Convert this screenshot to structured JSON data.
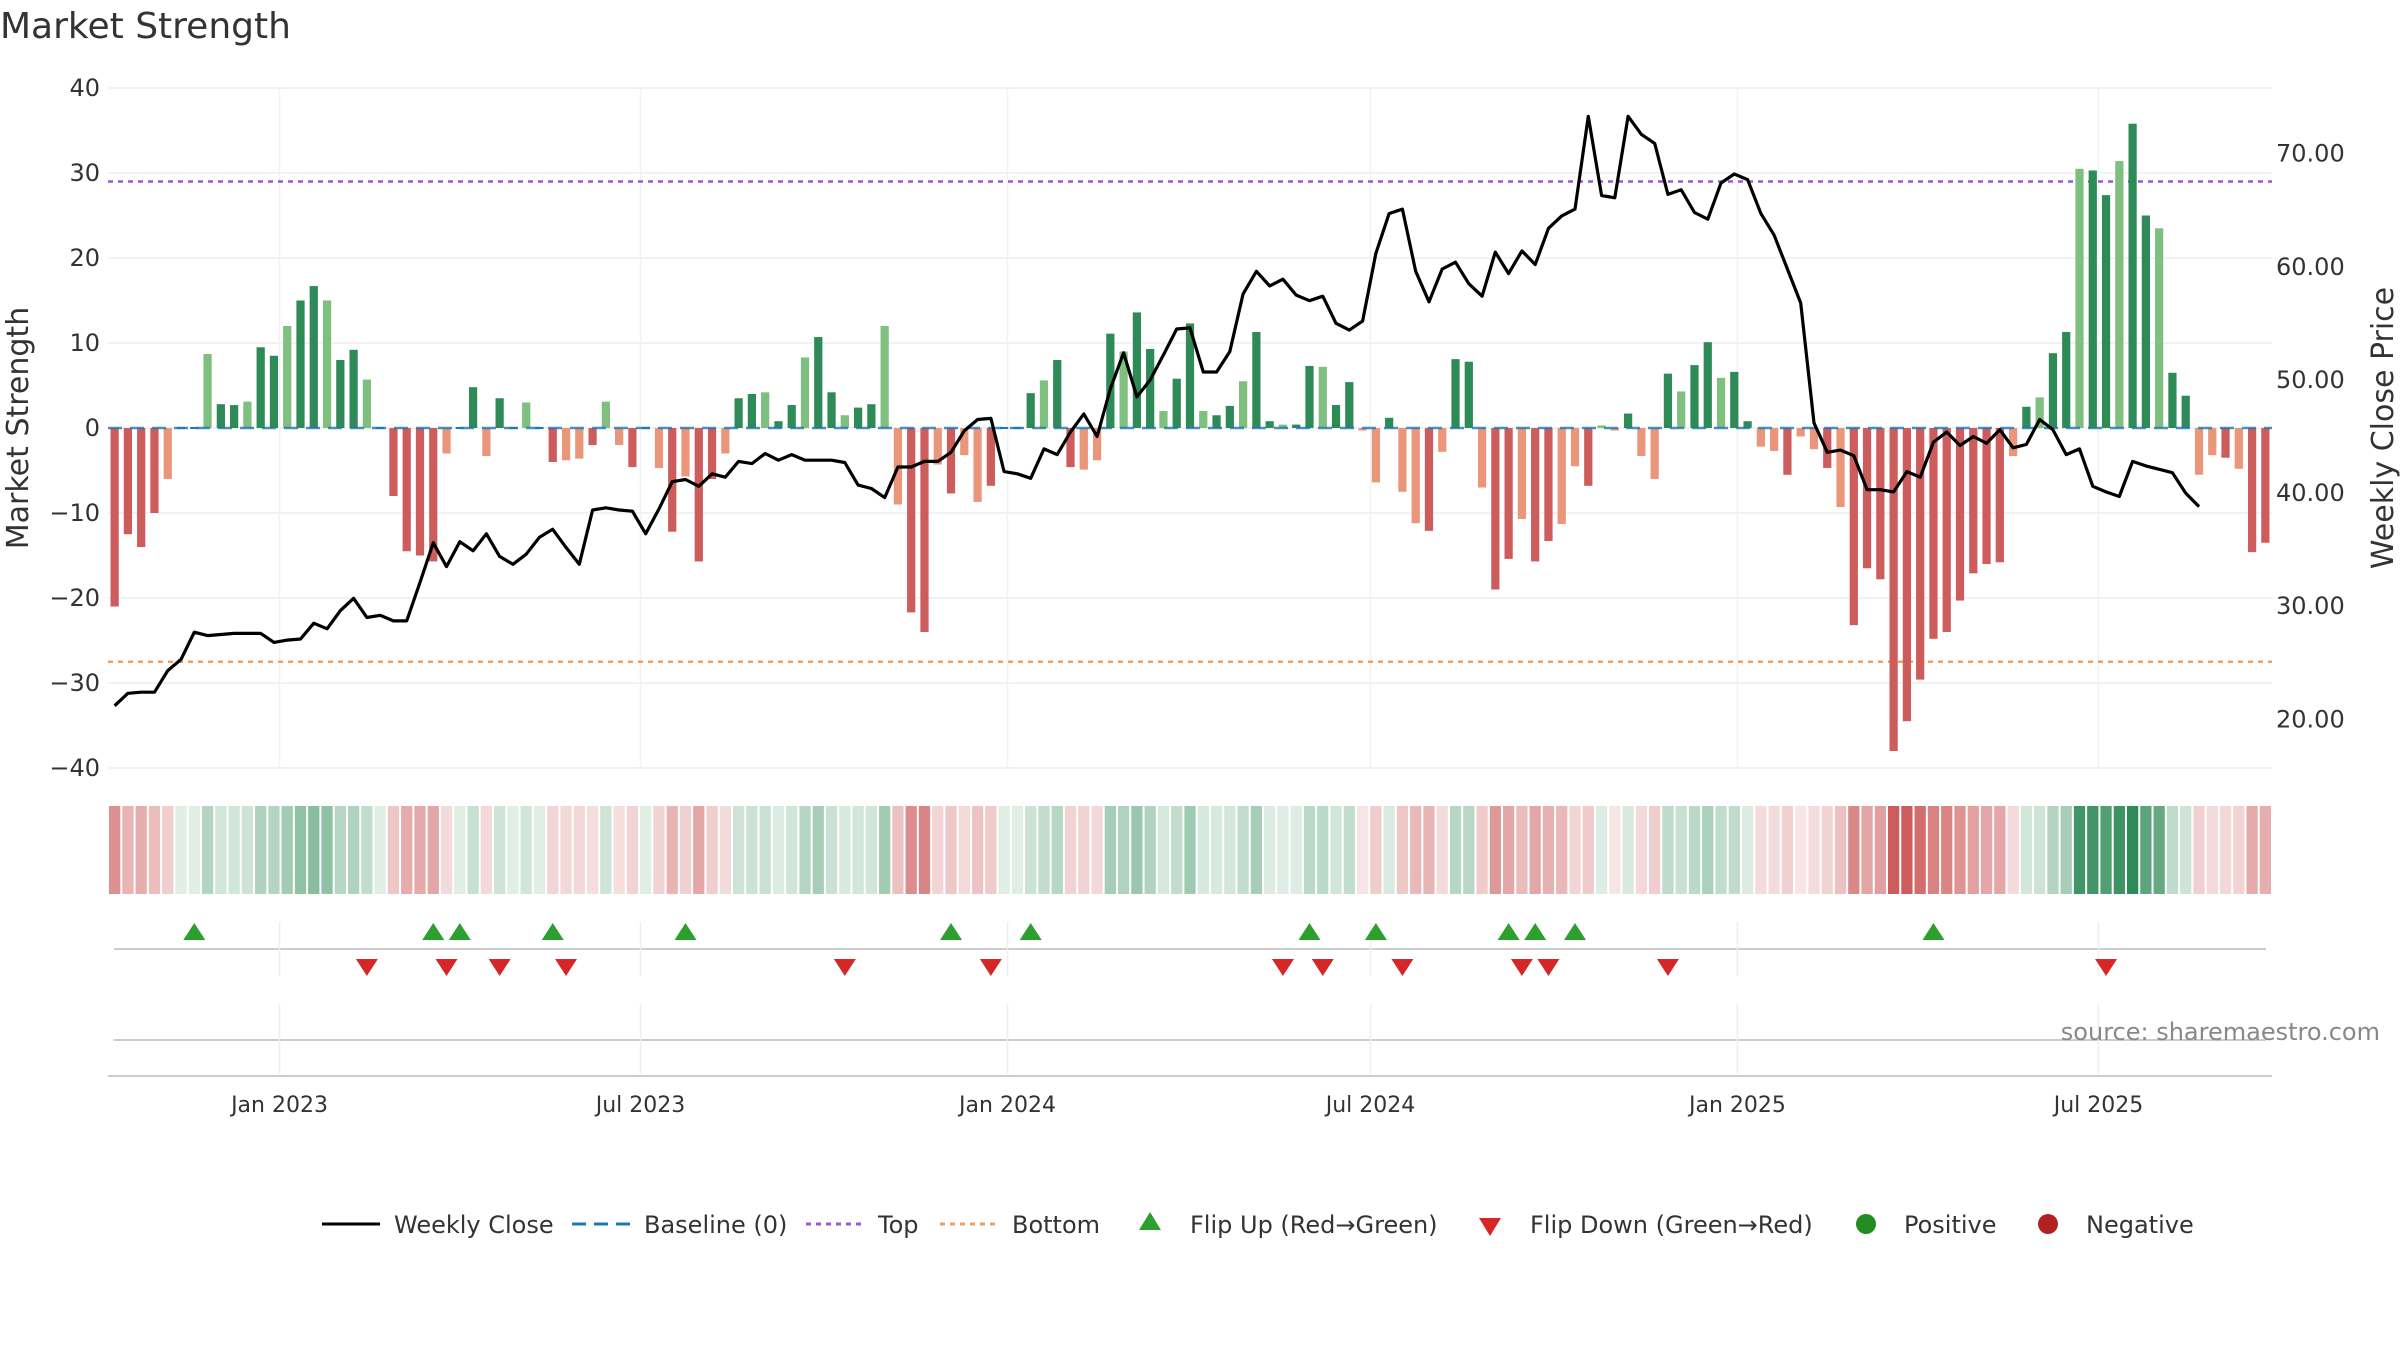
{
  "chart_data": {
    "type": "bar",
    "title": "Market Strength",
    "ylabel_left": "Market Strength",
    "ylabel_right": "Weekly Close Price",
    "ylim_left": [
      -40,
      40
    ],
    "ylim_right": [
      15.7,
      75.8
    ],
    "yticks_left": [
      "40",
      "30",
      "20",
      "10",
      "0",
      "−10",
      "−20",
      "−30",
      "−40"
    ],
    "yticks_right": [
      "70.00",
      "60.00",
      "50.00",
      "40.00",
      "30.00",
      "20.00"
    ],
    "xticks": [
      "Jan 2023",
      "Jul 2023",
      "Jan 2024",
      "Jul 2024",
      "Jan 2025",
      "Jul 2025"
    ],
    "x_range": [
      "2022-10-07",
      "2025-09-26"
    ],
    "top_level": 29,
    "bottom_level": -27.5,
    "grid": true,
    "source": "source: sharemaestro.com",
    "legend": [
      "Weekly Close",
      "Baseline (0)",
      "Top",
      "Bottom",
      "Flip Up (Red→Green)",
      "Flip Down (Green→Red)",
      "Positive",
      "Negative"
    ],
    "colors": {
      "pos_strong": "#2e8b57",
      "pos_light": "#7fbf7f",
      "neg_strong": "#cd5c5c",
      "neg_light": "#e9967a",
      "close_line": "#000000",
      "baseline": "#1f77b4",
      "top": "#9b59d0",
      "bottom": "#f0a060",
      "flip_up": "#2ca02c",
      "flip_down": "#d62728",
      "positive_dot": "#228b22",
      "negative_dot": "#b22222"
    },
    "strength": [
      -21,
      -12.5,
      -14,
      -10,
      -6,
      0,
      0,
      8.7,
      2.8,
      2.7,
      3.1,
      9.5,
      8.5,
      12,
      15,
      16.7,
      15,
      8,
      9.2,
      5.7,
      0,
      -8,
      -14.5,
      -15,
      -15.7,
      -3,
      0,
      4.8,
      -3.3,
      3.5,
      0,
      3,
      0,
      -4,
      -3.8,
      -3.6,
      -2,
      3.1,
      -2,
      -4.6,
      0,
      -4.7,
      -12.2,
      -5.7,
      -15.7,
      -6,
      -3,
      3.5,
      4,
      4.2,
      0.8,
      2.7,
      8.3,
      10.7,
      4.2,
      1.5,
      2.4,
      2.8,
      12,
      -9,
      -21.7,
      -24,
      -4.3,
      -7.7,
      -3.2,
      -8.7,
      -6.8,
      0,
      0,
      4.1,
      5.6,
      8,
      -4.6,
      -4.9,
      -3.8,
      11.1,
      9,
      13.6,
      9.3,
      2,
      5.8,
      12.3,
      2,
      1.5,
      2.6,
      5.5,
      11.3,
      0.8,
      0.4,
      0.4,
      7.3,
      7.2,
      2.7,
      5.4,
      -0.3,
      -6.4,
      1.2,
      -7.5,
      -11.2,
      -12.1,
      -2.8,
      8.1,
      7.8,
      -7,
      -19,
      -15.4,
      -10.7,
      -15.7,
      -13.3,
      -11.3,
      -4.5,
      -6.8,
      0.3,
      -0.3,
      1.7,
      -3.3,
      -6,
      6.4,
      4.3,
      7.4,
      10.1,
      5.9,
      6.6,
      0.8,
      -2.2,
      -2.7,
      -5.5,
      -1,
      -2.5,
      -4.7,
      -9.3,
      -23.2,
      -16.5,
      -17.8,
      -38,
      -34.5,
      -29.6,
      -24.8,
      -24,
      -20.3,
      -17.1,
      -16,
      -15.8,
      -3.3,
      2.5,
      3.6,
      8.8,
      11.3,
      30.5,
      30.3,
      27.4,
      31.4,
      35.8,
      25,
      23.5,
      6.5,
      3.8,
      -5.5,
      -3.2,
      -3.5,
      -4.8,
      -14.6,
      -13.5
    ],
    "weekly_close": [
      21.2,
      22.3,
      22.4,
      22.4,
      24.3,
      25.3,
      27.7,
      27.4,
      27.5,
      27.6,
      27.6,
      27.6,
      26.8,
      27,
      27.1,
      28.5,
      28,
      29.6,
      30.7,
      29,
      29.2,
      28.7,
      28.7,
      32.1,
      35.6,
      33.5,
      35.7,
      34.9,
      36.4,
      34.4,
      33.7,
      34.6,
      36.1,
      36.8,
      35.2,
      33.7,
      38.5,
      38.7,
      38.5,
      38.4,
      36.4,
      38.6,
      41,
      41.2,
      40.6,
      41.7,
      41.4,
      42.8,
      42.6,
      43.5,
      42.9,
      43.4,
      42.9,
      42.9,
      42.9,
      42.7,
      40.7,
      40.4,
      39.6,
      42.3,
      42.3,
      42.8,
      42.8,
      43.6,
      45.5,
      46.5,
      46.6,
      41.9,
      41.7,
      41.3,
      43.9,
      43.4,
      45.4,
      47,
      45,
      49.2,
      52.4,
      48.5,
      50,
      52.2,
      54.5,
      54.6,
      50.7,
      50.7,
      52.5,
      57.6,
      59.6,
      58.3,
      58.9,
      57.5,
      57,
      57.4,
      55,
      54.4,
      55.2,
      61.2,
      64.7,
      65.1,
      59.6,
      56.9,
      59.8,
      60.4,
      58.5,
      57.4,
      61.3,
      59.4,
      61.4,
      60.2,
      63.4,
      64.5,
      65.1,
      73.3,
      66.3,
      66.1,
      73.3,
      71.7,
      70.9,
      66.4,
      66.8,
      64.8,
      64.2,
      67.4,
      68.2,
      67.7,
      64.7,
      62.8,
      59.8,
      56.8,
      46.2,
      43.6,
      43.8,
      43.3,
      40.3,
      40.3,
      40.1,
      41.9,
      41.4,
      44.5,
      45.4,
      44.2,
      45,
      44.4,
      45.6,
      44,
      44.3,
      46.5,
      45.6,
      43.4,
      43.9,
      40.6,
      40.1,
      39.7,
      42.8,
      42.4,
      42.1,
      41.8,
      40,
      38.8
    ],
    "bands": [
      0,
      0,
      0,
      0,
      0,
      0,
      0,
      0,
      0,
      0,
      0,
      0,
      0,
      0,
      0,
      0,
      0,
      0,
      0,
      0,
      0,
      0,
      0,
      0,
      0,
      0,
      0,
      0,
      0,
      0,
      0,
      0,
      0,
      0,
      0,
      0,
      0,
      0,
      0,
      0,
      0,
      0,
      0,
      0,
      0,
      0,
      0,
      0,
      0,
      0,
      0,
      0,
      0,
      0,
      0,
      0,
      0,
      0,
      0,
      0,
      0,
      0,
      0,
      0,
      0,
      0,
      0,
      0,
      0,
      0,
      0,
      0,
      0,
      0,
      0,
      0,
      0,
      0,
      0,
      0,
      0,
      0,
      0,
      0,
      0,
      0,
      0,
      0,
      0,
      0,
      0,
      0,
      0,
      0,
      0,
      0,
      0,
      0,
      0,
      0,
      0,
      0,
      0,
      0,
      0,
      0,
      0,
      0,
      0,
      0,
      0,
      0,
      0,
      0,
      0,
      0,
      0,
      0,
      0,
      0,
      0,
      0,
      0,
      0,
      0,
      0,
      0,
      0,
      0,
      0,
      0,
      0,
      0,
      0,
      0,
      0,
      0,
      0,
      0,
      0,
      0,
      0,
      0,
      0,
      0,
      0,
      0,
      0,
      0,
      0,
      0,
      0,
      0,
      0,
      0,
      0,
      0,
      0,
      0,
      0,
      0
    ],
    "flip_up_weeks": [
      6,
      24,
      26,
      33,
      43,
      63,
      69,
      90,
      95,
      105,
      107,
      110,
      137
    ],
    "flip_down_weeks": [
      19,
      25,
      29,
      34,
      55,
      66,
      88,
      91,
      97,
      106,
      108,
      117,
      150
    ]
  }
}
